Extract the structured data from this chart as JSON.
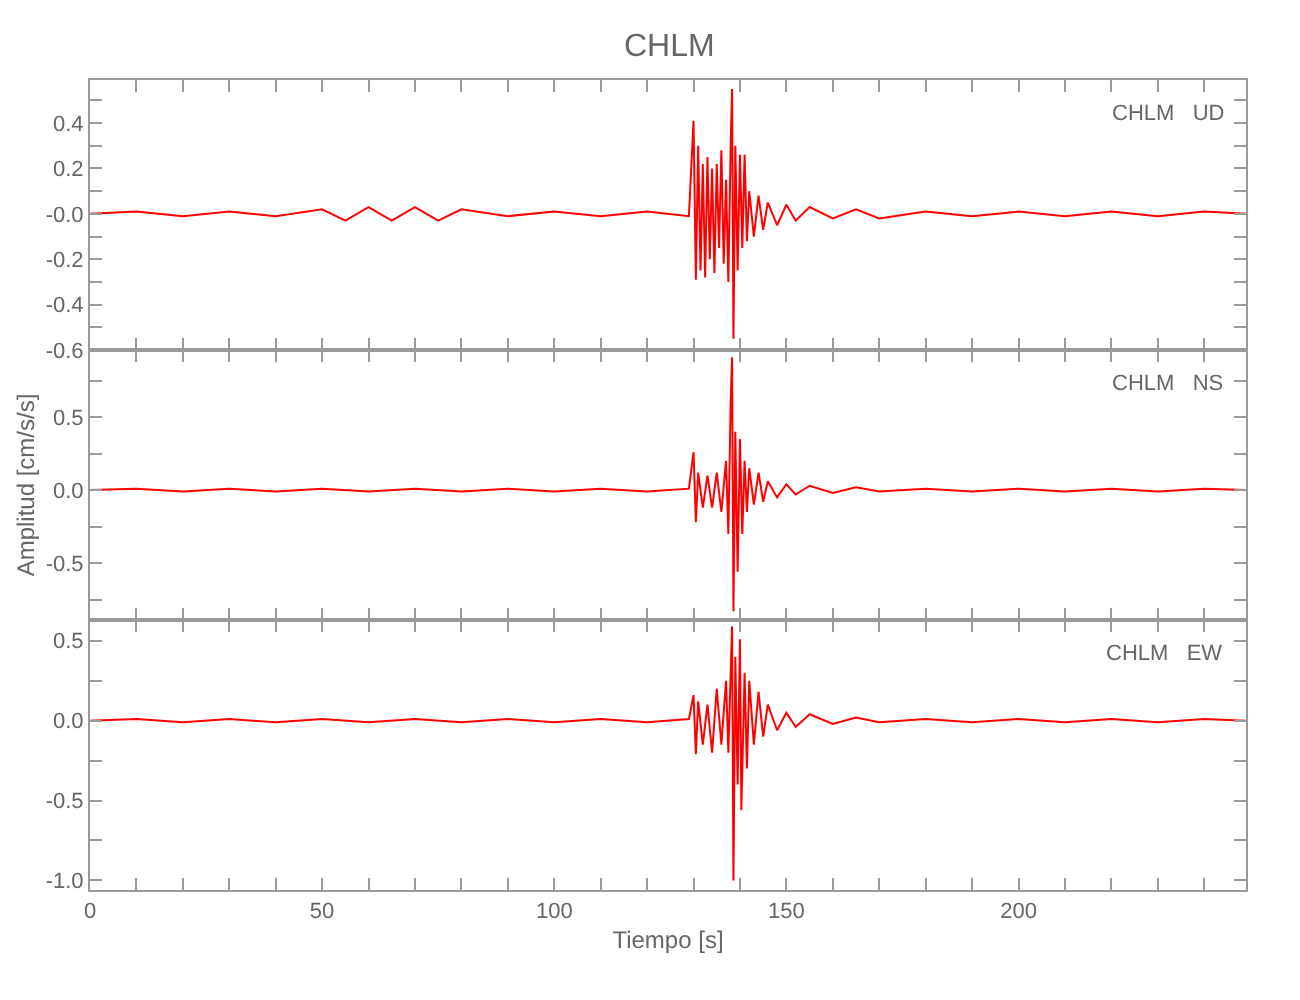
{
  "chart_data": [
    {
      "type": "line",
      "title": "CHLM",
      "annotations": [
        "CHLM UD"
      ],
      "tick_labels": "y",
      "x": [
        0,
        10,
        20,
        30,
        40,
        50,
        55,
        60,
        65,
        70,
        75,
        80,
        90,
        100,
        110,
        120,
        129,
        130,
        130.5,
        131,
        131.5,
        132,
        132.5,
        133,
        133.5,
        134,
        134.5,
        135,
        135.5,
        136,
        136.5,
        137,
        137.5,
        138,
        138.3,
        138.6,
        139,
        139.5,
        140,
        140.5,
        141,
        141.5,
        142,
        143,
        144,
        145,
        146,
        148,
        150,
        152,
        155,
        160,
        165,
        170,
        180,
        190,
        200,
        210,
        220,
        230,
        240,
        249
      ],
      "series": [
        {
          "color": "#ff0000",
          "values": [
            0,
            0.01,
            -0.01,
            0.01,
            -0.01,
            0.02,
            -0.03,
            0.03,
            -0.03,
            0.03,
            -0.03,
            0.02,
            -0.01,
            0.01,
            -0.01,
            0.01,
            -0.01,
            0.41,
            -0.29,
            0.3,
            -0.25,
            0.22,
            -0.28,
            0.25,
            -0.2,
            0.2,
            -0.26,
            0.22,
            -0.15,
            0.28,
            -0.22,
            0.15,
            -0.3,
            0.3,
            0.55,
            -0.55,
            0.3,
            -0.25,
            0.26,
            -0.15,
            0.26,
            -0.12,
            0.1,
            -0.1,
            0.08,
            -0.07,
            0.05,
            -0.05,
            0.04,
            -0.03,
            0.03,
            -0.02,
            0.02,
            -0.02,
            0.01,
            -0.01,
            0.01,
            -0.01,
            0.01,
            -0.01,
            0.01,
            0
          ]
        }
      ],
      "xlim": [
        0,
        249
      ],
      "xticks": [
        0,
        {
          "value": 10,
          "label": null
        },
        {
          "value": 20,
          "label": null
        },
        {
          "value": 30,
          "label": null
        },
        {
          "value": 40,
          "label": null
        },
        50,
        {
          "value": 60,
          "label": null
        },
        {
          "value": 70,
          "label": null
        },
        {
          "value": 80,
          "label": null
        },
        {
          "value": 90,
          "label": null
        },
        100,
        {
          "value": 110,
          "label": null
        },
        {
          "value": 120,
          "label": null
        },
        {
          "value": 130,
          "label": null
        },
        {
          "value": 140,
          "label": null
        },
        150,
        {
          "value": 160,
          "label": null
        },
        {
          "value": 170,
          "label": null
        },
        {
          "value": 180,
          "label": null
        },
        {
          "value": 190,
          "label": null
        },
        200,
        {
          "value": 210,
          "label": null
        },
        {
          "value": 220,
          "label": null
        },
        {
          "value": 230,
          "label": null
        },
        {
          "value": 240,
          "label": null
        }
      ],
      "ylim": [
        -0.6,
        0.59
      ],
      "yticks": [
        {
          "value": -0.6,
          "label": "-0.6"
        },
        {
          "value": -0.5,
          "label": null
        },
        {
          "value": -0.4,
          "label": "-0.4"
        },
        {
          "value": -0.3,
          "label": null
        },
        {
          "value": -0.2,
          "label": "-0.2"
        },
        {
          "value": -0.1,
          "label": null
        },
        {
          "value": 0,
          "label": "-0.0"
        },
        {
          "value": 0.1,
          "label": null
        },
        {
          "value": 0.2,
          "label": "0.2"
        },
        {
          "value": 0.3,
          "label": null
        },
        {
          "value": 0.4,
          "label": "0.4"
        },
        {
          "value": 0.5,
          "label": null
        }
      ]
    },
    {
      "type": "line",
      "ylabel": "Amplitud [cm/s/s]",
      "annotations": [
        "CHLM NS"
      ],
      "tick_labels": "y",
      "x": [
        0,
        10,
        20,
        30,
        40,
        50,
        60,
        70,
        80,
        90,
        100,
        110,
        120,
        129,
        130,
        130.5,
        131,
        132,
        133,
        134,
        135,
        136,
        137,
        137.5,
        138,
        138.3,
        138.6,
        139,
        139.5,
        140,
        140.5,
        141,
        141.5,
        142,
        143,
        144,
        145,
        146,
        148,
        150,
        152,
        155,
        160,
        165,
        170,
        180,
        190,
        200,
        210,
        220,
        230,
        240,
        249
      ],
      "series": [
        {
          "color": "#ff0000",
          "values": [
            0,
            0.01,
            -0.01,
            0.01,
            -0.01,
            0.01,
            -0.01,
            0.01,
            -0.01,
            0.01,
            -0.01,
            0.01,
            -0.01,
            0.01,
            0.26,
            -0.22,
            0.12,
            -0.12,
            0.1,
            -0.12,
            0.12,
            -0.15,
            0.2,
            -0.3,
            0.6,
            0.91,
            -0.83,
            0.4,
            -0.56,
            0.35,
            -0.3,
            0.2,
            -0.15,
            0.15,
            -0.1,
            0.12,
            -0.08,
            0.06,
            -0.05,
            0.04,
            -0.03,
            0.03,
            -0.02,
            0.02,
            -0.01,
            0.01,
            -0.01,
            0.01,
            -0.01,
            0.01,
            -0.01,
            0.01,
            0
          ]
        }
      ],
      "xlim": [
        0,
        249
      ],
      "xticks": [
        0,
        {
          "value": 10,
          "label": null
        },
        {
          "value": 20,
          "label": null
        },
        {
          "value": 30,
          "label": null
        },
        {
          "value": 40,
          "label": null
        },
        50,
        {
          "value": 60,
          "label": null
        },
        {
          "value": 70,
          "label": null
        },
        {
          "value": 80,
          "label": null
        },
        {
          "value": 90,
          "label": null
        },
        100,
        {
          "value": 110,
          "label": null
        },
        {
          "value": 120,
          "label": null
        },
        {
          "value": 130,
          "label": null
        },
        {
          "value": 140,
          "label": null
        },
        150,
        {
          "value": 160,
          "label": null
        },
        {
          "value": 170,
          "label": null
        },
        {
          "value": 180,
          "label": null
        },
        {
          "value": 190,
          "label": null
        },
        200,
        {
          "value": 210,
          "label": null
        },
        {
          "value": 220,
          "label": null
        },
        {
          "value": 230,
          "label": null
        },
        {
          "value": 240,
          "label": null
        }
      ],
      "ylim": [
        -0.89,
        0.96
      ],
      "yticks": [
        {
          "value": -0.75,
          "label": null
        },
        {
          "value": -0.5,
          "label": "-0.5"
        },
        {
          "value": -0.25,
          "label": null
        },
        {
          "value": 0,
          "label": "0.0"
        },
        {
          "value": 0.25,
          "label": null
        },
        {
          "value": 0.5,
          "label": "0.5"
        },
        {
          "value": 0.75,
          "label": null
        }
      ]
    },
    {
      "type": "line",
      "xlabel": "Tiempo [s]",
      "annotations": [
        "CHLM EW"
      ],
      "x": [
        0,
        10,
        20,
        30,
        40,
        50,
        60,
        70,
        80,
        90,
        100,
        110,
        120,
        129,
        130,
        130.5,
        131,
        132,
        133,
        134,
        135,
        136,
        137,
        137.5,
        138,
        138.3,
        138.6,
        139,
        139.5,
        140,
        140.3,
        141,
        141.5,
        142,
        143,
        144,
        145,
        146,
        148,
        150,
        152,
        155,
        160,
        165,
        170,
        180,
        190,
        200,
        210,
        220,
        230,
        240,
        249
      ],
      "series": [
        {
          "color": "#ff0000",
          "values": [
            0,
            0.01,
            -0.01,
            0.01,
            -0.01,
            0.01,
            -0.01,
            0.01,
            -0.01,
            0.01,
            -0.01,
            0.01,
            -0.01,
            0.01,
            0.16,
            -0.21,
            0.12,
            -0.15,
            0.1,
            -0.2,
            0.2,
            -0.15,
            0.25,
            -0.2,
            0.3,
            0.59,
            -1.0,
            0.4,
            -0.4,
            0.51,
            -0.56,
            0.3,
            -0.3,
            0.25,
            -0.15,
            0.18,
            -0.1,
            0.1,
            -0.06,
            0.05,
            -0.04,
            0.04,
            -0.02,
            0.02,
            -0.01,
            0.01,
            -0.01,
            0.01,
            -0.01,
            0.01,
            -0.01,
            0.01,
            0
          ]
        }
      ],
      "xlim": [
        0,
        249
      ],
      "xticks": [
        0,
        {
          "value": 10,
          "label": null
        },
        {
          "value": 20,
          "label": null
        },
        {
          "value": 30,
          "label": null
        },
        {
          "value": 40,
          "label": null
        },
        50,
        {
          "value": 60,
          "label": null
        },
        {
          "value": 70,
          "label": null
        },
        {
          "value": 80,
          "label": null
        },
        {
          "value": 90,
          "label": null
        },
        100,
        {
          "value": 110,
          "label": null
        },
        {
          "value": 120,
          "label": null
        },
        {
          "value": 130,
          "label": null
        },
        {
          "value": 140,
          "label": null
        },
        150,
        {
          "value": 160,
          "label": null
        },
        {
          "value": 170,
          "label": null
        },
        {
          "value": 180,
          "label": null
        },
        {
          "value": 190,
          "label": null
        },
        200,
        {
          "value": 210,
          "label": null
        },
        {
          "value": 220,
          "label": null
        },
        {
          "value": 230,
          "label": null
        },
        {
          "value": 240,
          "label": null
        }
      ],
      "ylim": [
        -1.06,
        0.63
      ],
      "yticks": [
        {
          "value": -1.0,
          "label": "-1.0"
        },
        {
          "value": -0.75,
          "label": null
        },
        {
          "value": -0.5,
          "label": "-0.5"
        },
        {
          "value": -0.25,
          "label": null
        },
        {
          "value": 0,
          "label": "0.0"
        },
        {
          "value": 0.25,
          "label": null
        },
        {
          "value": 0.5,
          "label": "0.5"
        }
      ]
    }
  ]
}
